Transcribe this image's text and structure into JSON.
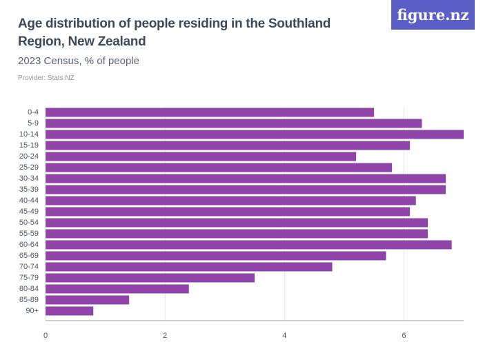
{
  "logo": "figure.nz",
  "chart_data": {
    "type": "bar",
    "orientation": "horizontal",
    "title": "Age distribution of people residing in the Southland Region, New Zealand",
    "subtitle": "2023 Census, % of people",
    "provider": "Provider: Stats NZ",
    "categories": [
      "0-4",
      "5-9",
      "10-14",
      "15-19",
      "20-24",
      "25-29",
      "30-34",
      "35-39",
      "40-44",
      "45-49",
      "50-54",
      "55-59",
      "60-64",
      "65-69",
      "70-74",
      "75-79",
      "80-84",
      "85-89",
      "90+"
    ],
    "values": [
      5.5,
      6.3,
      7.0,
      6.1,
      5.2,
      5.8,
      6.7,
      6.7,
      6.2,
      6.1,
      6.4,
      6.4,
      6.8,
      5.7,
      4.8,
      3.5,
      2.4,
      1.4,
      0.8
    ],
    "color": "#8e44a8",
    "xlim": [
      0,
      7
    ],
    "xticks": [
      0,
      2,
      4,
      6
    ],
    "grid": true
  }
}
